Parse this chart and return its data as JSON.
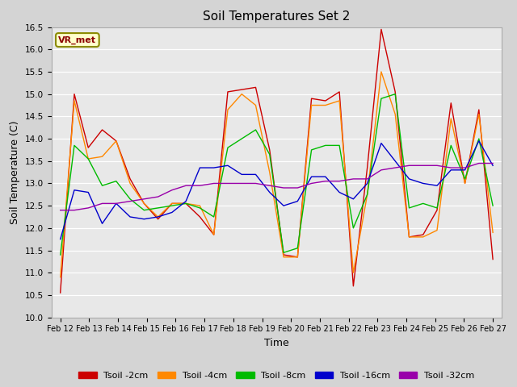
{
  "title": "Soil Temperatures Set 2",
  "xlabel": "Time",
  "ylabel": "Soil Temperature (C)",
  "ylim": [
    10.0,
    16.5
  ],
  "yticks": [
    10.0,
    10.5,
    11.0,
    11.5,
    12.0,
    12.5,
    13.0,
    13.5,
    14.0,
    14.5,
    15.0,
    15.5,
    16.0,
    16.5
  ],
  "xtick_labels": [
    "Feb 12",
    "Feb 13",
    "Feb 14",
    "Feb 15",
    "Feb 16",
    "Feb 17",
    "Feb 18",
    "Feb 19",
    "Feb 20",
    "Feb 21",
    "Feb 22",
    "Feb 23",
    "Feb 24",
    "Feb 25",
    "Feb 26",
    "Feb 27"
  ],
  "legend_label": "VR_met",
  "legend_entries": [
    "Tsoil -2cm",
    "Tsoil -4cm",
    "Tsoil -8cm",
    "Tsoil -16cm",
    "Tsoil -32cm"
  ],
  "line_colors": [
    "#cc0000",
    "#ff8800",
    "#00bb00",
    "#0000cc",
    "#9900aa"
  ],
  "series": {
    "Tsoil_2cm": [
      10.55,
      15.0,
      13.8,
      14.2,
      13.95,
      13.1,
      12.55,
      12.2,
      12.55,
      12.55,
      12.25,
      11.85,
      15.05,
      15.1,
      15.15,
      13.75,
      11.4,
      11.35,
      14.9,
      14.85,
      15.05,
      10.7,
      13.35,
      16.45,
      15.05,
      11.8,
      11.85,
      12.4,
      14.8,
      13.0,
      14.65,
      11.3
    ],
    "Tsoil_4cm": [
      10.9,
      14.85,
      13.55,
      13.6,
      13.95,
      13.0,
      12.55,
      12.25,
      12.55,
      12.55,
      12.5,
      11.85,
      14.65,
      15.0,
      14.75,
      13.25,
      11.35,
      11.35,
      14.75,
      14.75,
      14.85,
      11.0,
      12.75,
      15.5,
      14.55,
      11.8,
      11.8,
      11.95,
      14.45,
      13.0,
      14.55,
      11.9
    ],
    "Tsoil_8cm": [
      11.4,
      13.85,
      13.55,
      12.95,
      13.05,
      12.65,
      12.4,
      12.45,
      12.5,
      12.55,
      12.45,
      12.25,
      13.8,
      14.0,
      14.2,
      13.65,
      11.45,
      11.55,
      13.75,
      13.85,
      13.85,
      12.0,
      12.75,
      14.9,
      15.0,
      12.45,
      12.55,
      12.45,
      13.85,
      13.1,
      14.0,
      12.5
    ],
    "Tsoil_16cm": [
      11.75,
      12.85,
      12.8,
      12.1,
      12.55,
      12.25,
      12.2,
      12.25,
      12.35,
      12.6,
      13.35,
      13.35,
      13.4,
      13.2,
      13.2,
      12.8,
      12.5,
      12.6,
      13.15,
      13.15,
      12.8,
      12.65,
      13.0,
      13.9,
      13.5,
      13.1,
      13.0,
      12.95,
      13.3,
      13.3,
      13.95,
      13.4
    ],
    "Tsoil_32cm": [
      12.4,
      12.4,
      12.45,
      12.55,
      12.55,
      12.6,
      12.65,
      12.7,
      12.85,
      12.95,
      12.95,
      13.0,
      13.0,
      13.0,
      13.0,
      12.95,
      12.9,
      12.9,
      13.0,
      13.05,
      13.05,
      13.1,
      13.1,
      13.3,
      13.35,
      13.4,
      13.4,
      13.4,
      13.35,
      13.35,
      13.45,
      13.45
    ]
  }
}
